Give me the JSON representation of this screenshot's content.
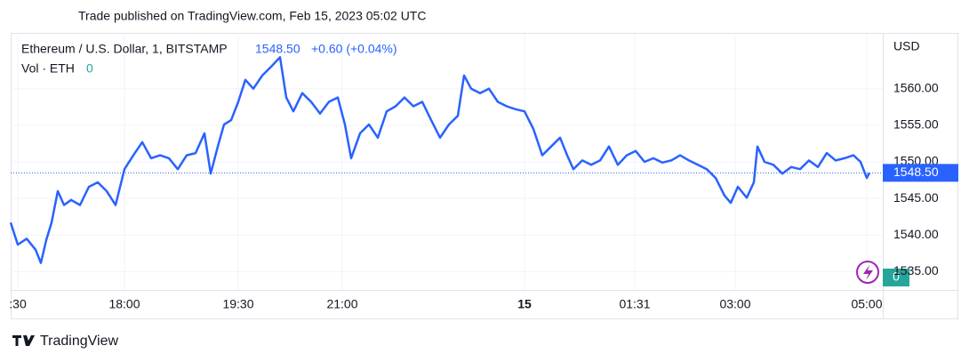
{
  "header": {
    "published": "Trade published on TradingView.com, Feb 15, 2023 05:02 UTC"
  },
  "chart_data": {
    "type": "line",
    "title": "Ethereum / U.S. Dollar, 1, BITSTAMP",
    "currency": "USD",
    "last": {
      "value": 1548.5,
      "label": "1548.50"
    },
    "change": "+0.60 (+0.04%)",
    "volume_label": "Vol · ETH",
    "volume_value": "0",
    "xlim": [
      0,
      981
    ],
    "xticks": [
      {
        "value": 8,
        "label": ":30"
      },
      {
        "value": 128,
        "label": "18:00"
      },
      {
        "value": 256,
        "label": "19:30"
      },
      {
        "value": 373,
        "label": "21:00"
      },
      {
        "value": 578,
        "label": "15"
      },
      {
        "value": 702,
        "label": "01:31"
      },
      {
        "value": 815,
        "label": "03:00"
      },
      {
        "value": 963,
        "label": "05:00"
      }
    ],
    "ylim": [
      1532.5,
      1567.5
    ],
    "yticks": [
      {
        "value": 1535,
        "label": "1535.00"
      },
      {
        "value": 1540,
        "label": "1540.00"
      },
      {
        "value": 1545,
        "label": "1545.00"
      },
      {
        "value": 1550,
        "label": "1550.00"
      },
      {
        "value": 1555,
        "label": "1555.00"
      },
      {
        "value": 1560,
        "label": "1560.00"
      }
    ],
    "grid": true,
    "series": [
      {
        "name": "ETHUSD",
        "color": "#2962ff",
        "x": [
          0,
          8,
          18,
          28,
          34,
          40,
          46,
          53,
          60,
          68,
          78,
          88,
          98,
          108,
          118,
          128,
          138,
          148,
          158,
          168,
          178,
          188,
          198,
          208,
          218,
          225,
          233,
          240,
          248,
          256,
          264,
          273,
          283,
          293,
          303,
          310,
          318,
          328,
          338,
          348,
          358,
          368,
          376,
          383,
          393,
          403,
          413,
          423,
          433,
          443,
          453,
          463,
          473,
          483,
          493,
          503,
          510,
          518,
          528,
          538,
          548,
          558,
          568,
          578,
          588,
          598,
          608,
          618,
          626,
          633,
          643,
          653,
          663,
          673,
          683,
          693,
          703,
          713,
          723,
          733,
          743,
          753,
          763,
          773,
          783,
          793,
          803,
          810,
          818,
          828,
          836,
          840,
          848,
          858,
          868,
          878,
          888,
          898,
          908,
          918,
          928,
          938,
          948,
          956,
          963,
          966
        ],
        "values": [
          1541.7,
          1538.7,
          1539.5,
          1538.0,
          1536.2,
          1539.3,
          1541.7,
          1546.0,
          1544.1,
          1544.8,
          1544.1,
          1546.6,
          1547.2,
          1546.0,
          1544.1,
          1549.0,
          1550.9,
          1552.7,
          1550.5,
          1550.9,
          1550.5,
          1549.0,
          1550.9,
          1551.2,
          1553.9,
          1548.4,
          1552.1,
          1555.1,
          1555.7,
          1558.2,
          1561.2,
          1560.0,
          1561.8,
          1563.0,
          1564.3,
          1558.8,
          1556.9,
          1559.4,
          1558.2,
          1556.6,
          1558.2,
          1558.8,
          1555.1,
          1550.5,
          1553.9,
          1555.1,
          1553.3,
          1556.9,
          1557.6,
          1558.8,
          1557.6,
          1558.2,
          1555.7,
          1553.3,
          1555.1,
          1556.3,
          1561.8,
          1560.0,
          1559.4,
          1560.0,
          1558.2,
          1557.6,
          1557.2,
          1556.9,
          1554.5,
          1550.9,
          1552.1,
          1553.3,
          1550.9,
          1549.0,
          1550.2,
          1549.6,
          1550.2,
          1552.1,
          1549.6,
          1550.9,
          1551.5,
          1550.0,
          1550.5,
          1549.9,
          1550.2,
          1550.9,
          1550.2,
          1549.6,
          1549.0,
          1547.8,
          1545.4,
          1544.4,
          1546.6,
          1545.1,
          1547.2,
          1552.1,
          1550.0,
          1549.6,
          1548.4,
          1549.3,
          1549.0,
          1550.2,
          1549.3,
          1551.2,
          1550.2,
          1550.5,
          1550.9,
          1550.0,
          1547.8,
          1548.5
        ]
      }
    ]
  },
  "footer": {
    "brand": "TradingView"
  }
}
